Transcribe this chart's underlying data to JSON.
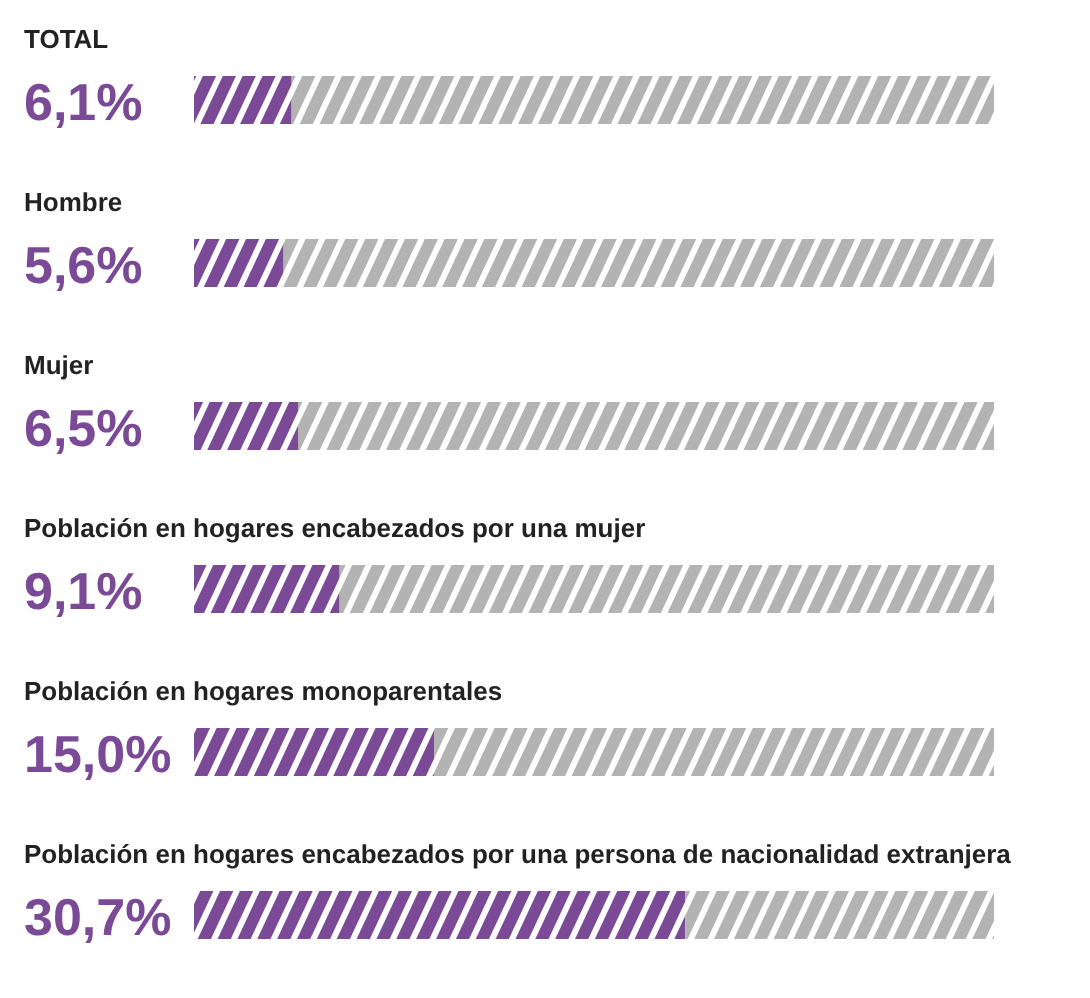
{
  "chart_data": {
    "type": "bar",
    "orientation": "horizontal",
    "stacked": true,
    "categories": [
      "TOTAL",
      "Hombre",
      "Mujer",
      "Población en hogares encabezados por una mujer",
      "Población en hogares monoparentales",
      "Población en hogares encabezados por una persona de nacionalidad extranjera"
    ],
    "series": [
      {
        "color": "#7b4a97",
        "values": [
          6.1,
          5.6,
          6.5,
          9.1,
          15.0,
          30.7
        ],
        "value_labels": [
          "6,1%",
          "5,6%",
          "6,5%",
          "9,1%",
          "15,0%",
          "30,7%"
        ]
      },
      {
        "color": "#b3b3b3",
        "values": [
          43.9,
          44.4,
          43.5,
          40.9,
          35.0,
          19.3
        ]
      }
    ],
    "xlim": [
      0,
      50
    ]
  }
}
